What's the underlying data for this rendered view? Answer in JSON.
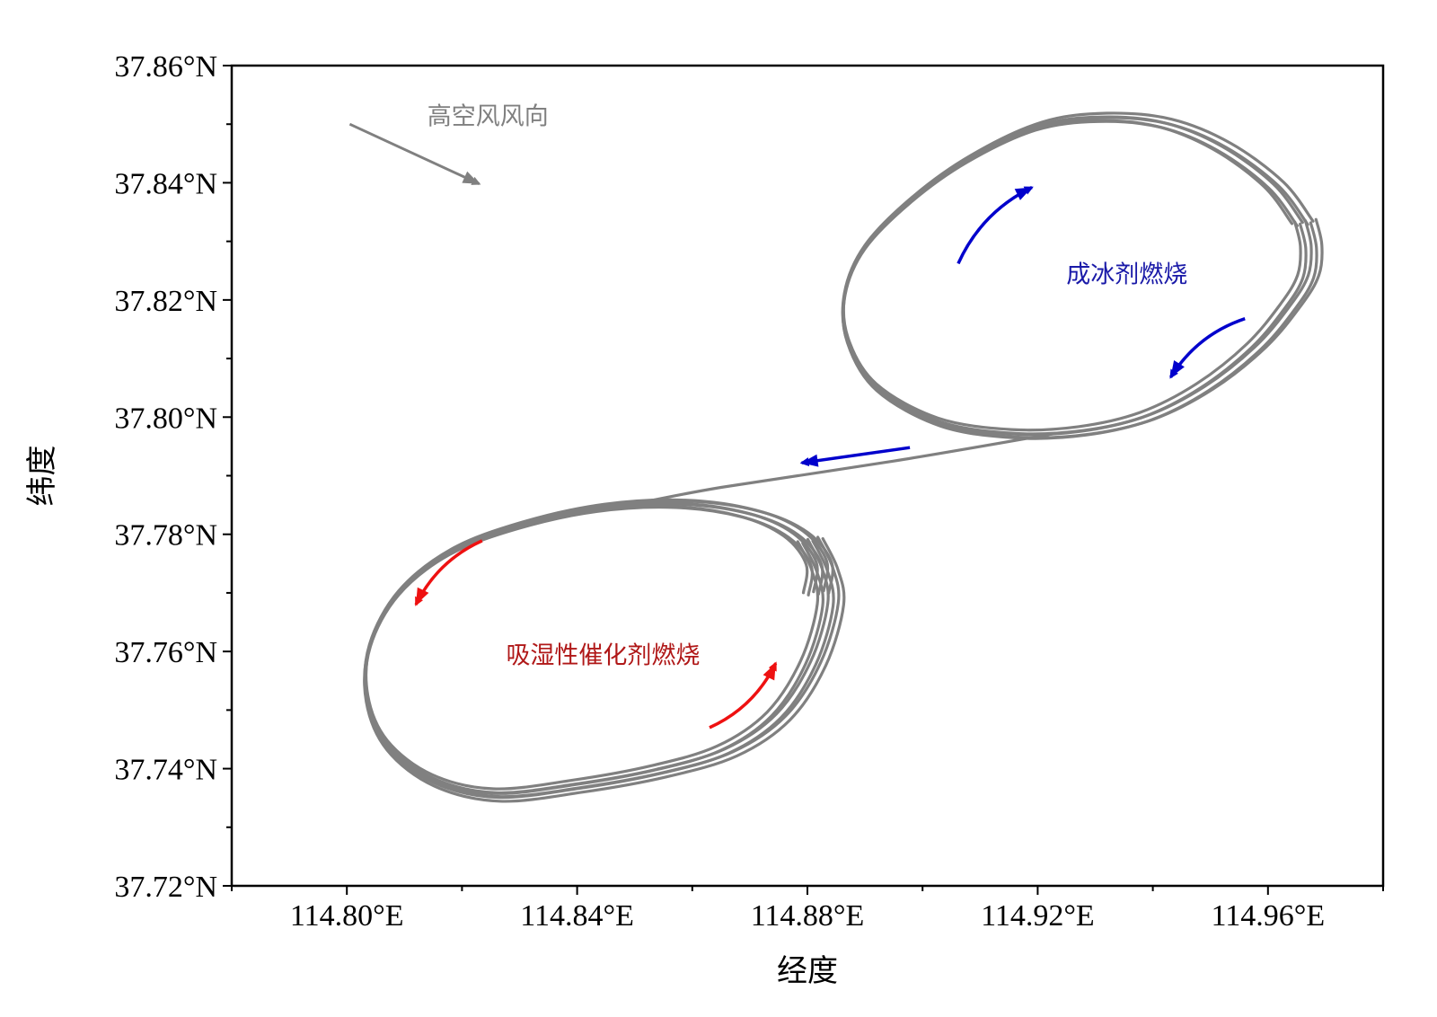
{
  "chart_data": {
    "type": "line",
    "title": "",
    "xlabel": "经度",
    "ylabel": "纬度",
    "xlim": [
      114.78,
      114.98
    ],
    "ylim": [
      37.72,
      37.86
    ],
    "x_ticks": [
      114.8,
      114.84,
      114.88,
      114.92,
      114.96
    ],
    "x_tick_labels": [
      "114.80°E",
      "114.84°E",
      "114.88°E",
      "114.92°E",
      "114.96°E"
    ],
    "y_ticks": [
      37.72,
      37.74,
      37.76,
      37.78,
      37.8,
      37.82,
      37.84,
      37.86
    ],
    "y_tick_labels": [
      "37.72°N",
      "37.74°N",
      "37.76°N",
      "37.78°N",
      "37.80°N",
      "37.82°N",
      "37.84°N",
      "37.86°N"
    ],
    "grid": false,
    "legend": "none",
    "colors": {
      "track": "#808080",
      "wind": "#808080",
      "blue": "#0000cc",
      "red": "#ee1111",
      "blue_text": "#1a1aa8",
      "red_text": "#b01818"
    },
    "annotations": [
      {
        "id": "wind",
        "text": "高空风风向",
        "x": 114.8245,
        "y": 37.8515,
        "color": "#808080"
      },
      {
        "id": "ice",
        "text": "成冰剂燃烧",
        "x": 114.9355,
        "y": 37.8245,
        "color": "#1a1aa8"
      },
      {
        "id": "hygro",
        "text": "吸湿性催化剂燃烧",
        "x": 114.8445,
        "y": 37.7595,
        "color": "#b01818"
      }
    ],
    "arrows": [
      {
        "id": "wind-arrow",
        "color": "#808080",
        "from": [
          114.8005,
          37.85
        ],
        "to": [
          114.823,
          37.8398
        ],
        "bend": 0
      },
      {
        "id": "blue-arrow-1",
        "color": "#0000cc",
        "from": [
          114.9062,
          37.8262
        ],
        "to": [
          114.919,
          37.8392
        ],
        "bend": -0.18
      },
      {
        "id": "blue-arrow-2",
        "color": "#0000cc",
        "from": [
          114.956,
          37.8168
        ],
        "to": [
          114.9431,
          37.8068
        ],
        "bend": 0.18
      },
      {
        "id": "blue-arrow-3",
        "color": "#0000cc",
        "from": [
          114.8978,
          37.7948
        ],
        "to": [
          114.879,
          37.7922
        ],
        "bend": 0
      },
      {
        "id": "red-arrow-1",
        "color": "#ee1111",
        "from": [
          114.8235,
          37.7789
        ],
        "to": [
          114.812,
          37.768
        ],
        "bend": 0.18
      },
      {
        "id": "red-arrow-2",
        "color": "#ee1111",
        "from": [
          114.863,
          37.747
        ],
        "to": [
          114.8745,
          37.758
        ],
        "bend": 0.18
      }
    ],
    "series": [
      {
        "type": "loop",
        "count": 5,
        "points": [
          [
            114.9665,
            37.8333
          ],
          [
            114.9675,
            37.829
          ],
          [
            114.967,
            37.824
          ],
          [
            114.964,
            37.819
          ],
          [
            114.958,
            37.812
          ],
          [
            114.949,
            37.805
          ],
          [
            114.939,
            37.8
          ],
          [
            114.928,
            37.7975
          ],
          [
            114.916,
            37.797
          ],
          [
            114.903,
            37.799
          ],
          [
            114.892,
            37.805
          ],
          [
            114.887,
            37.813
          ],
          [
            114.8865,
            37.821
          ],
          [
            114.89,
            37.829
          ],
          [
            114.898,
            37.837
          ],
          [
            114.908,
            37.844
          ],
          [
            114.92,
            37.8495
          ],
          [
            114.931,
            37.851
          ],
          [
            114.942,
            37.85
          ],
          [
            114.952,
            37.846
          ],
          [
            114.961,
            37.8395
          ],
          [
            114.966,
            37.833
          ]
        ]
      },
      {
        "type": "transit",
        "points": [
          [
            114.923,
            37.7972
          ],
          [
            114.895,
            37.7925
          ],
          [
            114.865,
            37.788
          ],
          [
            114.85,
            37.7852
          ]
        ]
      },
      {
        "type": "loop",
        "count": 6,
        "points": [
          [
            114.8805,
            37.779
          ],
          [
            114.883,
            37.774
          ],
          [
            114.884,
            37.768
          ],
          [
            114.881,
            37.758
          ],
          [
            114.875,
            37.749
          ],
          [
            114.866,
            37.743
          ],
          [
            114.854,
            37.7395
          ],
          [
            114.84,
            37.737
          ],
          [
            114.826,
            37.7355
          ],
          [
            114.815,
            37.738
          ],
          [
            114.807,
            37.744
          ],
          [
            114.8035,
            37.752
          ],
          [
            114.804,
            37.761
          ],
          [
            114.809,
            37.77
          ],
          [
            114.818,
            37.777
          ],
          [
            114.83,
            37.7815
          ],
          [
            114.844,
            37.7845
          ],
          [
            114.858,
            37.7852
          ],
          [
            114.87,
            37.7835
          ],
          [
            114.878,
            37.78
          ],
          [
            114.882,
            37.775
          ],
          [
            114.8815,
            37.77
          ]
        ]
      }
    ]
  }
}
